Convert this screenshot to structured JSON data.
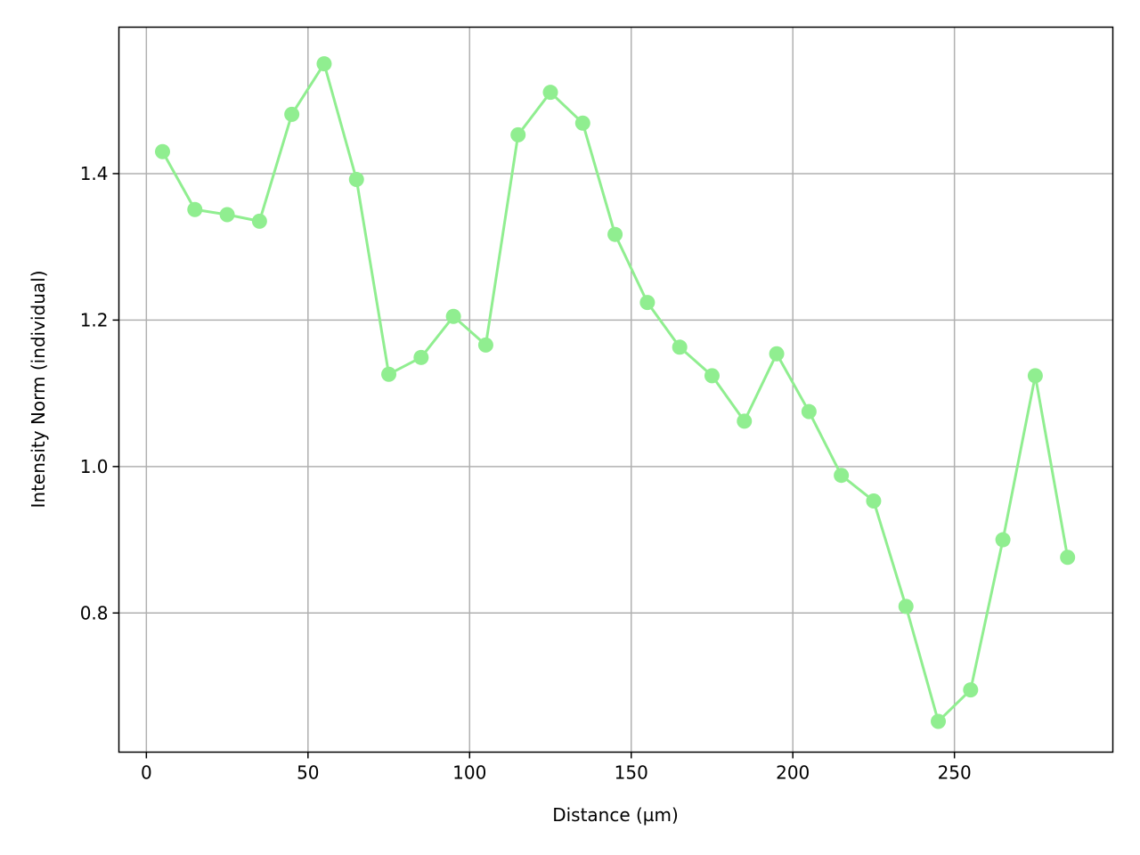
{
  "chart_data": {
    "type": "line",
    "title": "",
    "xlabel": "Distance (µm)",
    "ylabel": "Intensity Norm (individual)",
    "xlim": [
      -8.5,
      299
    ],
    "ylim": [
      0.61,
      1.6
    ],
    "xticks": [
      0,
      50,
      100,
      150,
      200,
      250
    ],
    "yticks": [
      0.8,
      1.0,
      1.2,
      1.4
    ],
    "xtick_labels": [
      "0",
      "50",
      "100",
      "150",
      "200",
      "250"
    ],
    "ytick_labels": [
      "0.8",
      "1.0",
      "1.2",
      "1.4"
    ],
    "grid": true,
    "legend": "none",
    "color": "#90ee90",
    "series": [
      {
        "x": [
          5,
          15,
          25,
          35,
          45,
          55,
          65,
          75,
          85,
          95,
          105,
          115,
          125,
          135,
          145,
          155,
          165,
          175,
          185,
          195,
          205,
          215,
          225,
          235,
          245,
          255,
          265,
          275,
          285
        ],
        "values": [
          1.43,
          1.351,
          1.344,
          1.335,
          1.481,
          1.55,
          1.392,
          1.126,
          1.149,
          1.205,
          1.166,
          1.453,
          1.511,
          1.469,
          1.317,
          1.224,
          1.163,
          1.124,
          1.062,
          1.154,
          1.075,
          0.988,
          0.953,
          0.809,
          0.652,
          0.695,
          0.9,
          1.124,
          0.876
        ]
      }
    ]
  }
}
